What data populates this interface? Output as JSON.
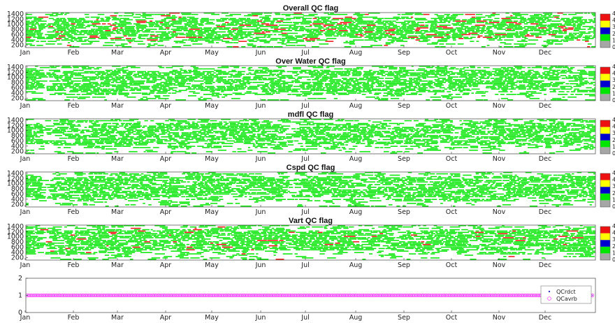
{
  "colors": {
    "green": "#00e600",
    "red": "#ee1111",
    "yellow": "#ffff00",
    "blue": "#0000cc",
    "gray": "#a6a6a6",
    "qc_dot": "#3333cc",
    "qc_ring": "#ff44ff"
  },
  "chart_data": [
    {
      "type": "heatmap",
      "title": "Overall QC flag",
      "x_tick_labels": [
        "Jan",
        "Feb",
        "Mar",
        "Apr",
        "May",
        "Jun",
        "Jul",
        "Aug",
        "Sep",
        "Oct",
        "Nov",
        "Dec"
      ],
      "y_tick_labels": [
        "1400",
        "1200",
        "1000",
        "800",
        "600",
        "400",
        "200"
      ],
      "ylim": [
        100,
        1450
      ],
      "colorbar": {
        "levels": [
          0,
          1,
          2,
          3,
          4
        ],
        "colors": [
          "gray",
          "green",
          "blue",
          "yellow",
          "red"
        ],
        "labels": [
          "0",
          "1",
          "2",
          "3",
          "4"
        ]
      },
      "dominant_flag": 1,
      "flag4_fraction": 0.12
    },
    {
      "type": "heatmap",
      "title": "Over Water QC flag",
      "x_tick_labels": [
        "Jan",
        "Feb",
        "Mar",
        "Apr",
        "May",
        "Jun",
        "Jul",
        "Aug",
        "Sep",
        "Oct",
        "Nov",
        "Dec"
      ],
      "y_tick_labels": [
        "1400",
        "1200",
        "1000",
        "800",
        "600",
        "400",
        "200"
      ],
      "ylim": [
        100,
        1450
      ],
      "colorbar": {
        "levels": [
          0,
          1,
          2,
          3,
          4
        ],
        "colors": [
          "gray",
          "green",
          "blue",
          "yellow",
          "red"
        ],
        "labels": [
          "0",
          "1",
          "2",
          "3",
          "4"
        ]
      },
      "dominant_flag": 1,
      "flag4_fraction": 0.0
    },
    {
      "type": "heatmap",
      "title": "mdfl QC flag",
      "x_tick_labels": [
        "Jan",
        "Feb",
        "Mar",
        "Apr",
        "May",
        "Jun",
        "Jul",
        "Aug",
        "Sep",
        "Oct",
        "Nov",
        "Dec"
      ],
      "y_tick_labels": [
        "1400",
        "1200",
        "1000",
        "800",
        "600",
        "400",
        "200"
      ],
      "ylim": [
        100,
        1450
      ],
      "colorbar": {
        "levels": [
          0,
          1,
          2,
          3,
          4
        ],
        "colors": [
          "gray",
          "green",
          "blue",
          "yellow",
          "red"
        ],
        "labels": [
          "0",
          "1",
          "2",
          "3",
          "4"
        ]
      },
      "dominant_flag": 1,
      "flag4_fraction": 0.0
    },
    {
      "type": "heatmap",
      "title": "Cspd QC flag",
      "x_tick_labels": [
        "Jan",
        "Feb",
        "Mar",
        "Apr",
        "May",
        "Jun",
        "Jul",
        "Aug",
        "Sep",
        "Oct",
        "Nov",
        "Dec"
      ],
      "y_tick_labels": [
        "1400",
        "1200",
        "1000",
        "800",
        "600",
        "400",
        "200"
      ],
      "ylim": [
        100,
        1450
      ],
      "colorbar": {
        "levels": [
          0,
          1,
          2,
          3,
          4
        ],
        "colors": [
          "gray",
          "green",
          "blue",
          "yellow",
          "red"
        ],
        "labels": [
          "0",
          "1",
          "2",
          "3",
          "4"
        ]
      },
      "dominant_flag": 1,
      "flag4_fraction": 0.0
    },
    {
      "type": "heatmap",
      "title": "Vart QC flag",
      "x_tick_labels": [
        "Jan",
        "Feb",
        "Mar",
        "Apr",
        "May",
        "Jun",
        "Jul",
        "Aug",
        "Sep",
        "Oct",
        "Nov",
        "Dec"
      ],
      "y_tick_labels": [
        "1400",
        "1200",
        "1000",
        "800",
        "600",
        "400",
        "200"
      ],
      "ylim": [
        100,
        1450
      ],
      "colorbar": {
        "levels": [
          0,
          1,
          2,
          3,
          4
        ],
        "colors": [
          "gray",
          "green",
          "blue",
          "yellow",
          "red"
        ],
        "labels": [
          "0",
          "1",
          "2",
          "3",
          "4"
        ]
      },
      "dominant_flag": 1,
      "flag4_fraction": 0.04
    },
    {
      "type": "scatter",
      "title": "",
      "x_tick_labels": [
        "Jan",
        "Feb",
        "Mar",
        "Apr",
        "May",
        "Jun",
        "Jul",
        "Aug",
        "Sep",
        "Oct",
        "Nov",
        "Dec"
      ],
      "y_tick_labels": [
        "2",
        "1",
        "0"
      ],
      "ylim": [
        0,
        2
      ],
      "legend_position": "right",
      "series": [
        {
          "name": "QCrdct",
          "value": 1,
          "marker": "dot",
          "color": "qc_dot"
        },
        {
          "name": "QCavrb",
          "value": 1,
          "marker": "ring",
          "color": "qc_ring"
        }
      ]
    }
  ]
}
